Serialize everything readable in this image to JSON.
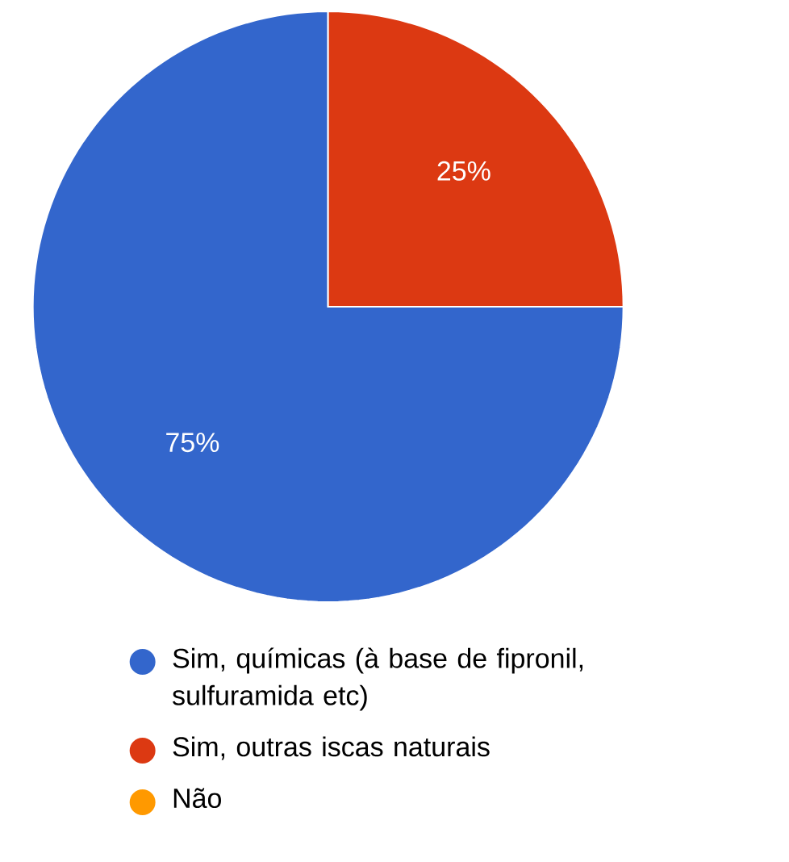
{
  "chart_data": {
    "type": "pie",
    "categories": [
      "Sim, químicas (à base de fipronil, sulfuramida etc)",
      "Sim, outras iscas naturais",
      "Não"
    ],
    "values": [
      75,
      25,
      0
    ],
    "colors": [
      "#3366cc",
      "#dc3912",
      "#ff9900"
    ],
    "value_labels": [
      "75%",
      "25%",
      null
    ],
    "legend": "bottom"
  }
}
